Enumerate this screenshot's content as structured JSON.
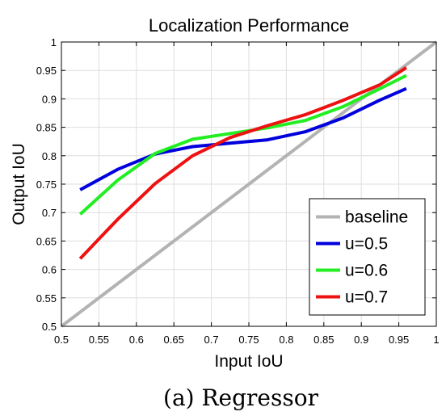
{
  "chart_data": {
    "type": "line",
    "title": "Localization Performance",
    "xlabel": "Input IoU",
    "ylabel": "Output IoU",
    "xlim": [
      0.5,
      1
    ],
    "ylim": [
      0.5,
      1
    ],
    "xticks": [
      "0.5",
      "0.55",
      "0.6",
      "0.65",
      "0.7",
      "0.75",
      "0.8",
      "0.85",
      "0.9",
      "0.95",
      "1"
    ],
    "yticks": [
      "0.5",
      "0.55",
      "0.6",
      "0.65",
      "0.7",
      "0.75",
      "0.8",
      "0.85",
      "0.9",
      "0.95",
      "1"
    ],
    "grid": true,
    "legend_position": "bottom-right",
    "series": [
      {
        "name": "baseline",
        "color": "#b3b3b3",
        "x": [
          0.5,
          1.0
        ],
        "y": [
          0.5,
          1.0
        ]
      },
      {
        "name": "u=0.5",
        "color": "#0000dd",
        "x": [
          0.525,
          0.575,
          0.625,
          0.675,
          0.725,
          0.775,
          0.825,
          0.875,
          0.925,
          0.96
        ],
        "y": [
          0.74,
          0.776,
          0.803,
          0.816,
          0.822,
          0.828,
          0.842,
          0.866,
          0.898,
          0.918
        ]
      },
      {
        "name": "u=0.6",
        "color": "#22ee22",
        "x": [
          0.525,
          0.575,
          0.625,
          0.675,
          0.725,
          0.775,
          0.825,
          0.875,
          0.925,
          0.96
        ],
        "y": [
          0.697,
          0.757,
          0.804,
          0.829,
          0.839,
          0.849,
          0.862,
          0.886,
          0.918,
          0.941
        ]
      },
      {
        "name": "u=0.7",
        "color": "#ee1111",
        "x": [
          0.525,
          0.575,
          0.625,
          0.675,
          0.725,
          0.775,
          0.825,
          0.875,
          0.925,
          0.96
        ],
        "y": [
          0.619,
          0.688,
          0.751,
          0.8,
          0.832,
          0.853,
          0.872,
          0.897,
          0.925,
          0.955
        ]
      }
    ]
  },
  "caption": "(a) Regressor"
}
